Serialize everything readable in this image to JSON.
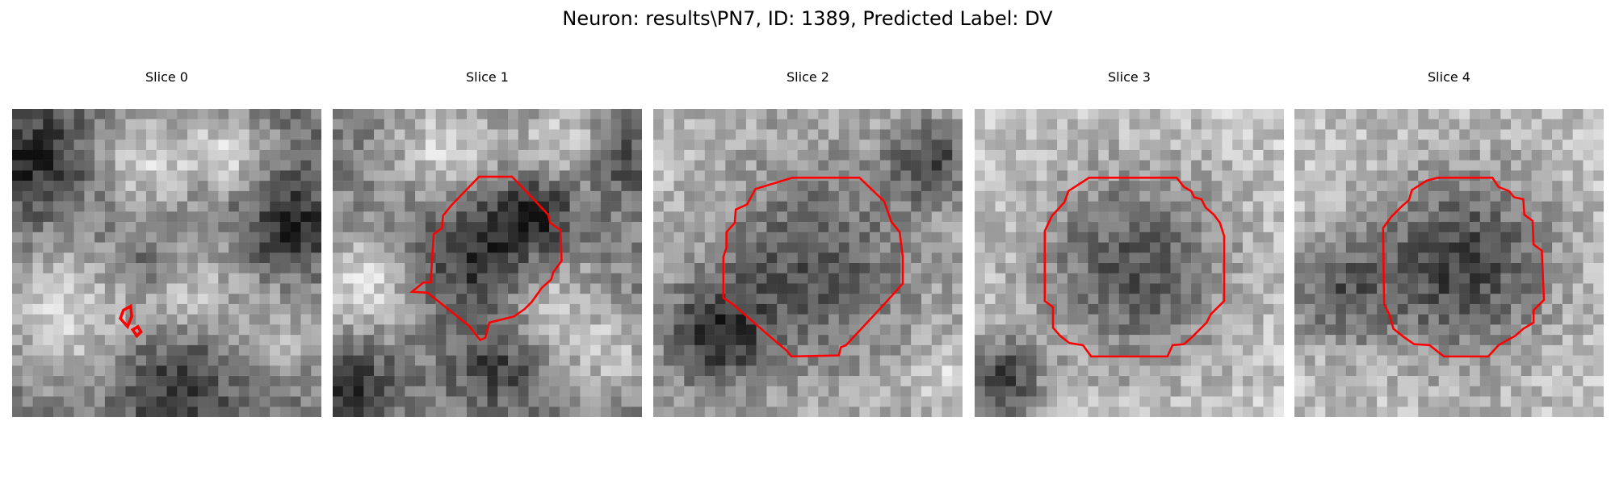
{
  "figure": {
    "title": "Neuron: results\\PN7, ID: 1389, Predicted Label: DV"
  },
  "panels": [
    {
      "title": "Slice 0",
      "seed": 11,
      "base": "slice0"
    },
    {
      "title": "Slice 1",
      "seed": 23,
      "base": "slice1"
    },
    {
      "title": "Slice 2",
      "seed": 37,
      "base": "slice2"
    },
    {
      "title": "Slice 3",
      "seed": 51,
      "base": "slice3"
    },
    {
      "title": "Slice 4",
      "seed": 67,
      "base": "slice4"
    }
  ],
  "colors": {
    "contour": "#ff0000"
  }
}
